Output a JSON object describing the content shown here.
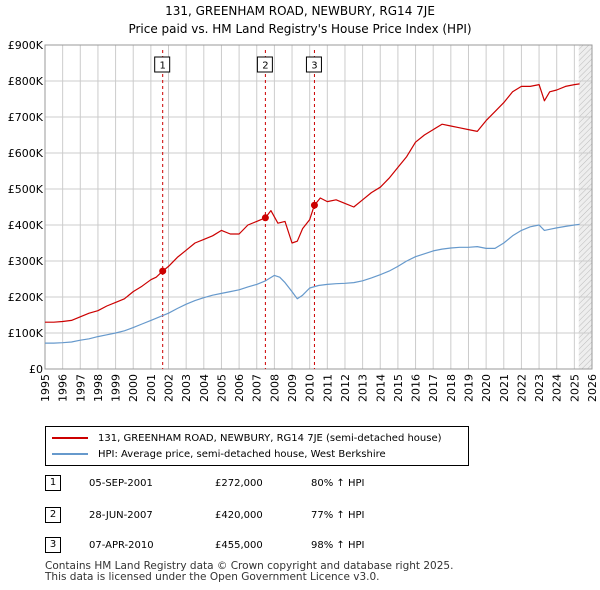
{
  "title_line1": "131, GREENHAM ROAD, NEWBURY, RG14 7JE",
  "title_line2": "Price paid vs. HM Land Registry's House Price Index (HPI)",
  "colors": {
    "price": "#cc0000",
    "hpi": "#6699cc",
    "grid": "#cccccc",
    "shade": "#dce6f2",
    "vline": "#cc0000"
  },
  "chart_data": {
    "type": "line",
    "xlim": [
      1995,
      2026
    ],
    "ylim": [
      0,
      900000
    ],
    "y_ticks": [
      0,
      100000,
      200000,
      300000,
      400000,
      500000,
      600000,
      700000,
      800000,
      900000
    ],
    "y_tick_labels": [
      "£0",
      "£100K",
      "£200K",
      "£300K",
      "£400K",
      "£500K",
      "£600K",
      "£700K",
      "£800K",
      "£900K"
    ],
    "x_ticks": [
      1995,
      1996,
      1997,
      1998,
      1999,
      2000,
      2001,
      2002,
      2003,
      2004,
      2005,
      2006,
      2007,
      2008,
      2009,
      2010,
      2011,
      2012,
      2013,
      2014,
      2015,
      2016,
      2017,
      2018,
      2019,
      2020,
      2021,
      2022,
      2023,
      2024,
      2025,
      2026
    ],
    "x_tick_labels": [
      "1995",
      "1996",
      "1997",
      "1998",
      "1999",
      "2000",
      "2001",
      "2002",
      "2003",
      "2004",
      "2005",
      "2006",
      "2007",
      "2008",
      "2009",
      "2010",
      "2011",
      "2012",
      "2013",
      "2014",
      "2015",
      "2016",
      "2017",
      "2018",
      "2019",
      "2020",
      "2021",
      "2022",
      "2023",
      "2024",
      "2025",
      "2026"
    ],
    "forecast_start": 2025.25,
    "series": [
      {
        "name": "131, GREENHAM ROAD, NEWBURY, RG14 7JE (semi-detached house)",
        "x": [
          1995.0,
          1995.5,
          1996.0,
          1996.5,
          1997.0,
          1997.5,
          1998.0,
          1998.5,
          1999.0,
          1999.5,
          2000.0,
          2000.5,
          2001.0,
          2001.3,
          2001.67,
          2002.0,
          2002.5,
          2003.0,
          2003.5,
          2004.0,
          2004.5,
          2005.0,
          2005.5,
          2006.0,
          2006.5,
          2007.0,
          2007.49,
          2007.8,
          2008.2,
          2008.6,
          2009.0,
          2009.3,
          2009.6,
          2010.0,
          2010.27,
          2010.6,
          2011.0,
          2011.5,
          2012.0,
          2012.5,
          2013.0,
          2013.5,
          2014.0,
          2014.5,
          2015.0,
          2015.5,
          2016.0,
          2016.5,
          2017.0,
          2017.5,
          2018.0,
          2018.5,
          2019.0,
          2019.5,
          2020.0,
          2020.5,
          2021.0,
          2021.5,
          2022.0,
          2022.5,
          2023.0,
          2023.3,
          2023.6,
          2024.0,
          2024.5,
          2025.0,
          2025.3
        ],
        "y": [
          130000,
          130000,
          132000,
          135000,
          145000,
          155000,
          162000,
          175000,
          185000,
          195000,
          215000,
          230000,
          248000,
          255000,
          272000,
          285000,
          310000,
          330000,
          350000,
          360000,
          370000,
          385000,
          375000,
          375000,
          400000,
          410000,
          420000,
          440000,
          405000,
          410000,
          350000,
          355000,
          390000,
          415000,
          455000,
          475000,
          465000,
          470000,
          460000,
          450000,
          470000,
          490000,
          505000,
          530000,
          560000,
          590000,
          630000,
          650000,
          665000,
          680000,
          675000,
          670000,
          665000,
          660000,
          690000,
          715000,
          740000,
          770000,
          785000,
          785000,
          790000,
          745000,
          770000,
          775000,
          785000,
          790000,
          792000
        ]
      },
      {
        "name": "HPI: Average price, semi-detached house, West Berkshire",
        "x": [
          1995.0,
          1995.5,
          1996.0,
          1996.5,
          1997.0,
          1997.5,
          1998.0,
          1998.5,
          1999.0,
          1999.5,
          2000.0,
          2000.5,
          2001.0,
          2001.5,
          2002.0,
          2002.5,
          2003.0,
          2003.5,
          2004.0,
          2004.5,
          2005.0,
          2005.5,
          2006.0,
          2006.5,
          2007.0,
          2007.5,
          2008.0,
          2008.3,
          2008.6,
          2009.0,
          2009.3,
          2009.6,
          2010.0,
          2010.5,
          2011.0,
          2011.5,
          2012.0,
          2012.5,
          2013.0,
          2013.5,
          2014.0,
          2014.5,
          2015.0,
          2015.5,
          2016.0,
          2016.5,
          2017.0,
          2017.5,
          2018.0,
          2018.5,
          2019.0,
          2019.5,
          2020.0,
          2020.5,
          2021.0,
          2021.5,
          2022.0,
          2022.5,
          2023.0,
          2023.3,
          2023.6,
          2024.0,
          2024.5,
          2025.0,
          2025.3
        ],
        "y": [
          72000,
          72000,
          73000,
          75000,
          80000,
          84000,
          90000,
          95000,
          100000,
          106000,
          115000,
          125000,
          135000,
          145000,
          155000,
          168000,
          180000,
          190000,
          198000,
          205000,
          210000,
          215000,
          220000,
          228000,
          235000,
          245000,
          260000,
          255000,
          240000,
          215000,
          195000,
          205000,
          225000,
          232000,
          235000,
          237000,
          238000,
          240000,
          245000,
          253000,
          262000,
          272000,
          285000,
          300000,
          312000,
          320000,
          328000,
          333000,
          336000,
          338000,
          338000,
          340000,
          335000,
          335000,
          350000,
          370000,
          385000,
          395000,
          400000,
          385000,
          388000,
          392000,
          396000,
          400000,
          402000
        ]
      }
    ],
    "sales": [
      {
        "label": "1",
        "x": 2001.67,
        "price": 272000
      },
      {
        "label": "2",
        "x": 2007.49,
        "price": 420000
      },
      {
        "label": "3",
        "x": 2010.27,
        "price": 455000
      }
    ]
  },
  "legend": {
    "price_label": "131, GREENHAM ROAD, NEWBURY, RG14 7JE (semi-detached house)",
    "hpi_label": "HPI: Average price, semi-detached house, West Berkshire"
  },
  "transactions": [
    {
      "num": "1",
      "date": "05-SEP-2001",
      "price": "£272,000",
      "hpi": "80% ↑ HPI"
    },
    {
      "num": "2",
      "date": "28-JUN-2007",
      "price": "£420,000",
      "hpi": "77% ↑ HPI"
    },
    {
      "num": "3",
      "date": "07-APR-2010",
      "price": "£455,000",
      "hpi": "98% ↑ HPI"
    }
  ],
  "footer_line1": "Contains HM Land Registry data © Crown copyright and database right 2025.",
  "footer_line2": "This data is licensed under the Open Government Licence v3.0."
}
